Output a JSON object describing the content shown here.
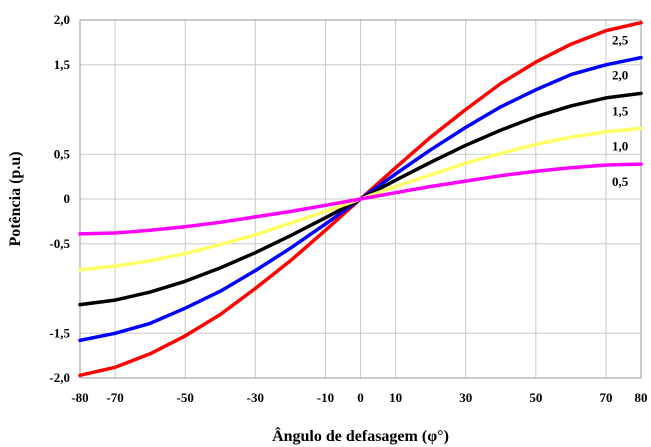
{
  "chart_data": {
    "type": "line",
    "xlabel": "Ângulo de defasagem (φ°)",
    "ylabel": "Potência (p.u)",
    "xlim": [
      -80,
      80
    ],
    "ylim": [
      -2.0,
      2.0
    ],
    "x_ticks": [
      -80,
      -70,
      -50,
      -30,
      -10,
      0,
      10,
      30,
      50,
      70,
      80
    ],
    "x_tick_labels": [
      "-80",
      "-70",
      "-50",
      "-30",
      "-10",
      "0",
      "10",
      "30",
      "50",
      "70",
      "80"
    ],
    "y_ticks": [
      2.0,
      1.5,
      0.5,
      0,
      -0.5,
      -1.5,
      -2.0
    ],
    "y_tick_labels": [
      "2,0",
      "1,5",
      "0,5",
      "0",
      "-0,5",
      "-1,5",
      "-2,0"
    ],
    "grid": true,
    "x": [
      -80,
      -70,
      -60,
      -50,
      -40,
      -30,
      -20,
      -10,
      0,
      10,
      20,
      30,
      40,
      50,
      60,
      70,
      80
    ],
    "series": [
      {
        "name": "2,5",
        "color": "#ff0000",
        "values": [
          -1.97,
          -1.88,
          -1.73,
          -1.53,
          -1.29,
          -1.0,
          -0.69,
          -0.35,
          0,
          0.35,
          0.69,
          1.0,
          1.29,
          1.53,
          1.73,
          1.88,
          1.97
        ]
      },
      {
        "name": "2,0",
        "color": "#0000ff",
        "values": [
          -1.58,
          -1.5,
          -1.39,
          -1.22,
          -1.03,
          -0.8,
          -0.55,
          -0.28,
          0,
          0.28,
          0.55,
          0.8,
          1.03,
          1.22,
          1.39,
          1.5,
          1.58
        ]
      },
      {
        "name": "1,5",
        "color": "#000000",
        "values": [
          -1.18,
          -1.13,
          -1.04,
          -0.92,
          -0.77,
          -0.6,
          -0.41,
          -0.21,
          0,
          0.21,
          0.41,
          0.6,
          0.77,
          0.92,
          1.04,
          1.13,
          1.18
        ]
      },
      {
        "name": "1,0",
        "color": "#ffff66",
        "values": [
          -0.79,
          -0.75,
          -0.69,
          -0.61,
          -0.51,
          -0.4,
          -0.27,
          -0.14,
          0,
          0.14,
          0.27,
          0.4,
          0.51,
          0.61,
          0.69,
          0.75,
          0.79
        ]
      },
      {
        "name": "0,5",
        "color": "#ff00ff",
        "values": [
          -0.39,
          -0.38,
          -0.35,
          -0.31,
          -0.26,
          -0.2,
          -0.14,
          -0.07,
          0,
          0.07,
          0.14,
          0.2,
          0.26,
          0.31,
          0.35,
          0.38,
          0.39
        ]
      }
    ]
  }
}
